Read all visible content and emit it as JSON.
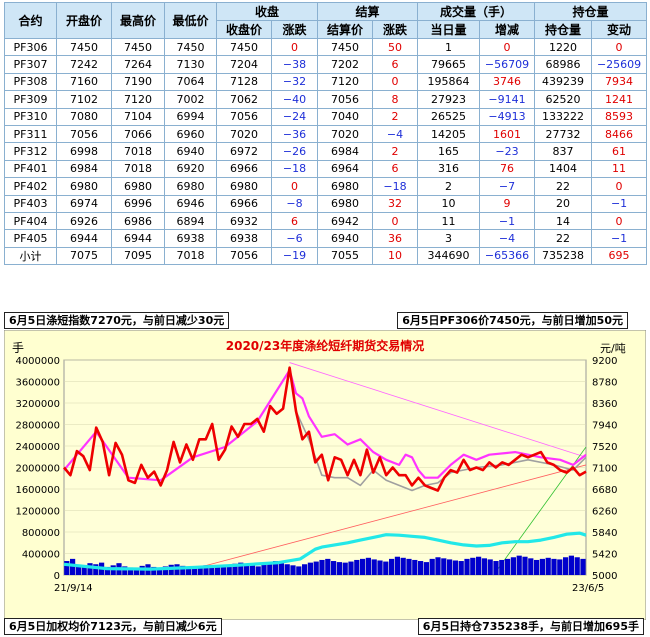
{
  "table": {
    "group_headers": [
      "收盘",
      "结算",
      "成交量（手）",
      "持仓量"
    ],
    "columns": [
      "合约",
      "开盘价",
      "最高价",
      "最低价",
      "收盘价",
      "涨跌",
      "结算价",
      "涨跌",
      "当日量",
      "增减",
      "持仓量",
      "变动"
    ],
    "rows": [
      [
        "PF306",
        "7450",
        "7450",
        "7450",
        "7450",
        "0",
        "7450",
        "50",
        "1",
        "0",
        "1220",
        "0"
      ],
      [
        "PF307",
        "7242",
        "7264",
        "7130",
        "7204",
        "−38",
        "7202",
        "6",
        "79665",
        "−56709",
        "68986",
        "−25609"
      ],
      [
        "PF308",
        "7160",
        "7190",
        "7064",
        "7128",
        "−32",
        "7120",
        "0",
        "195864",
        "3746",
        "439239",
        "7934"
      ],
      [
        "PF309",
        "7102",
        "7120",
        "7002",
        "7062",
        "−40",
        "7056",
        "8",
        "27923",
        "−9141",
        "62520",
        "1241"
      ],
      [
        "PF310",
        "7080",
        "7104",
        "6994",
        "7056",
        "−24",
        "7040",
        "2",
        "26525",
        "−4913",
        "133222",
        "8593"
      ],
      [
        "PF311",
        "7056",
        "7066",
        "6960",
        "7020",
        "−36",
        "7020",
        "−4",
        "14205",
        "1601",
        "27732",
        "8466"
      ],
      [
        "PF312",
        "6998",
        "7018",
        "6940",
        "6972",
        "−26",
        "6984",
        "2",
        "165",
        "−23",
        "837",
        "61"
      ],
      [
        "PF401",
        "6984",
        "7018",
        "6920",
        "6966",
        "−18",
        "6964",
        "6",
        "316",
        "76",
        "1404",
        "11"
      ],
      [
        "PF402",
        "6980",
        "6980",
        "6980",
        "6980",
        "0",
        "6980",
        "−18",
        "2",
        "−7",
        "22",
        "0"
      ],
      [
        "PF403",
        "6974",
        "6996",
        "6946",
        "6966",
        "−8",
        "6980",
        "32",
        "10",
        "9",
        "20",
        "−1"
      ],
      [
        "PF404",
        "6926",
        "6986",
        "6894",
        "6932",
        "6",
        "6942",
        "0",
        "11",
        "−1",
        "14",
        "0"
      ],
      [
        "PF405",
        "6944",
        "6944",
        "6938",
        "6938",
        "−6",
        "6940",
        "36",
        "3",
        "−4",
        "22",
        "−1"
      ],
      [
        "小计",
        "7075",
        "7095",
        "7018",
        "7056",
        "−19",
        "7055",
        "10",
        "344690",
        "−65366",
        "735238",
        "695"
      ]
    ]
  },
  "banners": {
    "top_left": "6月5日涤短指数7270元，与前日减少30元",
    "top_right": "6月5日PF306价7450元，与前日增加50元",
    "bottom_left": "6月5日加权均价7123元，与前日减少6元",
    "bottom_right": "6月5日持仓735238手，与前日增加695手"
  },
  "chart_data": {
    "type": "line",
    "title": "2020/23年度涤纶短纤期货交易情况",
    "left_unit": "手",
    "right_unit": "元/吨",
    "x_start_label": "21/9/14",
    "x_end_label": "23/6/5",
    "left_ticks": [
      "0",
      "400000",
      "800000",
      "1200000",
      "1600000",
      "2000000",
      "2400000",
      "2800000",
      "3200000",
      "3600000",
      "4000000"
    ],
    "right_ticks": [
      "5000",
      "5420",
      "5840",
      "6260",
      "6680",
      "7100",
      "7520",
      "7940",
      "8360",
      "8780",
      "9200"
    ],
    "left_range": [
      0,
      4000000
    ],
    "right_range": [
      5000,
      9200
    ],
    "series": [
      {
        "role": "price",
        "color": "#ee0000",
        "axis": "right",
        "points": [
          [
            0,
            7100
          ],
          [
            3,
            6950
          ],
          [
            6,
            7420
          ],
          [
            9,
            7320
          ],
          [
            12,
            7050
          ],
          [
            15,
            7880
          ],
          [
            18,
            7600
          ],
          [
            21,
            6950
          ],
          [
            24,
            7580
          ],
          [
            27,
            7350
          ],
          [
            30,
            6850
          ],
          [
            33,
            6800
          ],
          [
            36,
            7150
          ],
          [
            39,
            6900
          ],
          [
            42,
            7020
          ],
          [
            45,
            6750
          ],
          [
            48,
            7050
          ],
          [
            51,
            7600
          ],
          [
            54,
            7200
          ],
          [
            57,
            7550
          ],
          [
            60,
            7250
          ],
          [
            63,
            7650
          ],
          [
            66,
            7650
          ],
          [
            69,
            7950
          ],
          [
            72,
            7250
          ],
          [
            75,
            7450
          ],
          [
            78,
            7900
          ],
          [
            81,
            7700
          ],
          [
            84,
            7950
          ],
          [
            87,
            7950
          ],
          [
            90,
            8050
          ],
          [
            93,
            7800
          ],
          [
            96,
            8300
          ],
          [
            99,
            8150
          ],
          [
            102,
            8250
          ],
          [
            105,
            9050
          ],
          [
            108,
            8200
          ],
          [
            111,
            7650
          ],
          [
            114,
            7800
          ],
          [
            117,
            7200
          ],
          [
            120,
            7350
          ],
          [
            123,
            6850
          ],
          [
            126,
            7300
          ],
          [
            129,
            7250
          ],
          [
            132,
            6950
          ],
          [
            135,
            7250
          ],
          [
            138,
            6950
          ],
          [
            141,
            7450
          ],
          [
            144,
            7000
          ],
          [
            147,
            7300
          ],
          [
            150,
            6950
          ],
          [
            153,
            7100
          ],
          [
            156,
            6950
          ],
          [
            159,
            6950
          ],
          [
            162,
            6750
          ],
          [
            165,
            6900
          ],
          [
            168,
            6750
          ],
          [
            171,
            6700
          ],
          [
            174,
            6650
          ],
          [
            177,
            6900
          ],
          [
            180,
            7050
          ],
          [
            183,
            7000
          ],
          [
            186,
            7250
          ],
          [
            189,
            7050
          ],
          [
            192,
            7100
          ],
          [
            195,
            7050
          ],
          [
            198,
            7200
          ],
          [
            201,
            7100
          ],
          [
            204,
            7200
          ],
          [
            207,
            7150
          ],
          [
            210,
            7250
          ],
          [
            213,
            7350
          ],
          [
            216,
            7300
          ],
          [
            219,
            7350
          ],
          [
            222,
            7400
          ],
          [
            225,
            7200
          ],
          [
            228,
            7150
          ],
          [
            231,
            7050
          ],
          [
            234,
            7000
          ],
          [
            237,
            7100
          ],
          [
            240,
            6950
          ],
          [
            243,
            7020
          ]
        ]
      },
      {
        "role": "settlement",
        "color": "#ff33ff",
        "axis": "right",
        "points": [
          [
            0,
            7050
          ],
          [
            15,
            7800
          ],
          [
            30,
            6900
          ],
          [
            45,
            6850
          ],
          [
            60,
            7300
          ],
          [
            75,
            7500
          ],
          [
            90,
            8000
          ],
          [
            96,
            8400
          ],
          [
            102,
            8800
          ],
          [
            105,
            9000
          ],
          [
            108,
            8550
          ],
          [
            111,
            8450
          ],
          [
            114,
            8100
          ],
          [
            120,
            7700
          ],
          [
            126,
            7750
          ],
          [
            132,
            7550
          ],
          [
            138,
            7650
          ],
          [
            144,
            7400
          ],
          [
            150,
            7250
          ],
          [
            156,
            7150
          ],
          [
            159,
            7350
          ],
          [
            162,
            7300
          ],
          [
            165,
            7050
          ],
          [
            168,
            6900
          ],
          [
            174,
            6900
          ],
          [
            180,
            7150
          ],
          [
            186,
            7350
          ],
          [
            192,
            7250
          ],
          [
            198,
            7350
          ],
          [
            210,
            7400
          ],
          [
            222,
            7300
          ],
          [
            231,
            7250
          ],
          [
            237,
            7150
          ],
          [
            243,
            7350
          ]
        ]
      },
      {
        "role": "index",
        "color": "#a0a0a0",
        "axis": "right",
        "points": [
          [
            108,
            8200
          ],
          [
            114,
            7650
          ],
          [
            120,
            6950
          ],
          [
            126,
            6900
          ],
          [
            132,
            6900
          ],
          [
            138,
            6750
          ],
          [
            144,
            7050
          ],
          [
            150,
            6850
          ],
          [
            156,
            6750
          ],
          [
            162,
            6650
          ],
          [
            168,
            6750
          ],
          [
            174,
            6800
          ],
          [
            180,
            7000
          ],
          [
            192,
            7100
          ],
          [
            204,
            7150
          ],
          [
            216,
            7250
          ],
          [
            228,
            7150
          ],
          [
            237,
            7050
          ],
          [
            243,
            7300
          ]
        ]
      },
      {
        "role": "open_interest",
        "color": "#22e8e8",
        "axis": "left",
        "points": [
          [
            0,
            200000
          ],
          [
            20,
            120000
          ],
          [
            40,
            110000
          ],
          [
            60,
            140000
          ],
          [
            80,
            180000
          ],
          [
            100,
            230000
          ],
          [
            110,
            300000
          ],
          [
            117,
            480000
          ],
          [
            120,
            520000
          ],
          [
            126,
            560000
          ],
          [
            132,
            600000
          ],
          [
            138,
            650000
          ],
          [
            144,
            700000
          ],
          [
            150,
            750000
          ],
          [
            156,
            740000
          ],
          [
            162,
            720000
          ],
          [
            168,
            700000
          ],
          [
            174,
            650000
          ],
          [
            180,
            600000
          ],
          [
            186,
            560000
          ],
          [
            192,
            540000
          ],
          [
            198,
            550000
          ],
          [
            204,
            600000
          ],
          [
            210,
            620000
          ],
          [
            216,
            620000
          ],
          [
            222,
            650000
          ],
          [
            228,
            700000
          ],
          [
            234,
            760000
          ],
          [
            240,
            780000
          ],
          [
            243,
            740000
          ]
        ]
      }
    ],
    "volume_bars": {
      "color": "#0000cc",
      "axis": "left",
      "values": [
        260000,
        300000,
        180000,
        160000,
        220000,
        200000,
        230000,
        150000,
        180000,
        220000,
        160000,
        140000,
        120000,
        170000,
        200000,
        150000,
        130000,
        160000,
        190000,
        200000,
        170000,
        150000,
        120000,
        140000,
        180000,
        160000,
        140000,
        170000,
        190000,
        210000,
        230000,
        200000,
        180000,
        160000,
        190000,
        240000,
        260000,
        220000,
        200000,
        180000,
        160000,
        200000,
        230000,
        250000,
        280000,
        300000,
        260000,
        240000,
        230000,
        250000,
        280000,
        300000,
        320000,
        290000,
        270000,
        250000,
        300000,
        340000,
        320000,
        300000,
        280000,
        260000,
        240000,
        300000,
        330000,
        310000,
        290000,
        270000,
        260000,
        300000,
        320000,
        340000,
        310000,
        290000,
        260000,
        280000,
        300000,
        330000,
        360000,
        340000,
        310000,
        280000,
        300000,
        320000,
        300000,
        290000,
        330000,
        360000,
        330000,
        300000
      ]
    }
  }
}
